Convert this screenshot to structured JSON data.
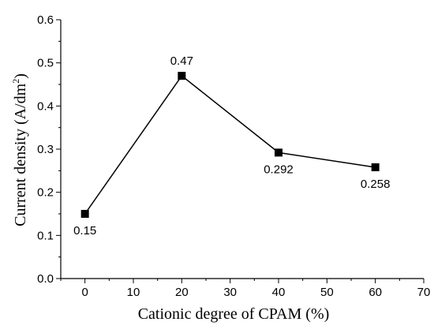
{
  "chart_data": {
    "type": "line",
    "xlabel": "Cationic degree of CPAM (%)",
    "ylabel_main": "Current density (A/dm",
    "ylabel_sup": "2",
    "ylabel_close": ")",
    "xlim": [
      -5,
      70
    ],
    "ylim": [
      0.0,
      0.6
    ],
    "x_ticks": [
      0,
      10,
      20,
      30,
      40,
      50,
      60,
      70
    ],
    "y_ticks": [
      "0.0",
      "0.1",
      "0.2",
      "0.3",
      "0.4",
      "0.5",
      "0.6"
    ],
    "grid": false,
    "marker": "square",
    "color": "#000000",
    "series": [
      {
        "x": [
          0,
          20,
          40,
          60
        ],
        "y": [
          0.15,
          0.47,
          0.292,
          0.258
        ],
        "labels": [
          "0.15",
          "0.47",
          "0.292",
          "0.258"
        ]
      }
    ]
  }
}
